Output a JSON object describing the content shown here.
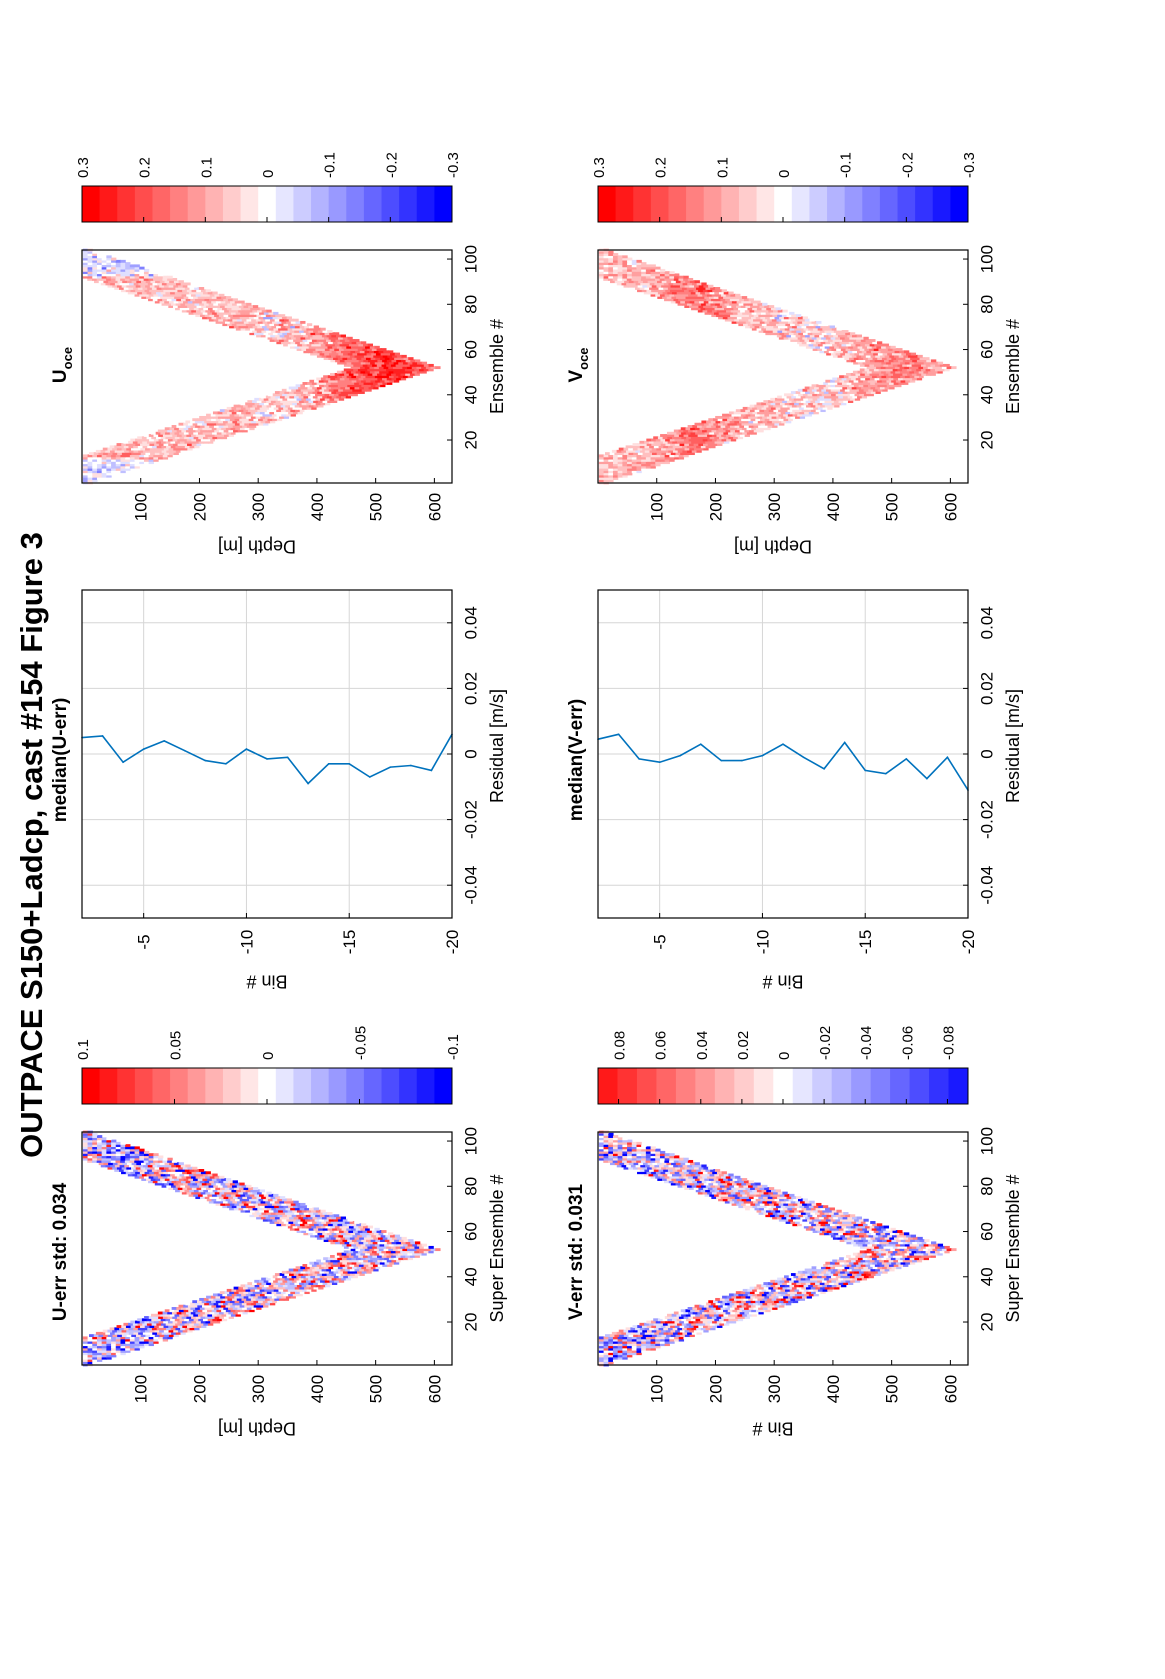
{
  "figure_title": "OUTPACE S150+Ladcp, cast #154  Figure 3",
  "colors": {
    "line": "#0072bd",
    "positive": "#ff0000",
    "negative": "#0000ff",
    "grid": "#d6d6d6"
  },
  "chart_data": [
    {
      "id": "u_err",
      "type": "heatmap",
      "title": "U-err std: 0.034",
      "xlabel": "Super Ensemble #",
      "ylabel": "Depth [m]",
      "xlim": [
        1,
        104
      ],
      "ylim": [
        0,
        630
      ],
      "xticks": [
        "20",
        "40",
        "60",
        "80",
        "100"
      ],
      "yticks": [
        "100",
        "200",
        "300",
        "400",
        "500",
        "600"
      ],
      "pattern": "down-up cast, deepest near ensemble 52, ~600 m",
      "colorbar": {
        "range": [
          -0.1,
          0.1
        ],
        "ticks": [
          "0.1",
          "0.05",
          "0",
          "-0.05",
          "-0.1"
        ]
      }
    },
    {
      "id": "median_u",
      "type": "line",
      "title": "median(U-err)",
      "xlabel": "Residual [m/s]",
      "ylabel": "Bin #",
      "xlim": [
        -0.05,
        0.05
      ],
      "ylim": [
        -20,
        -2
      ],
      "xticks": [
        "-0.04",
        "-0.02",
        "0",
        "0.02",
        "0.04"
      ],
      "yticks": [
        "-5",
        "-10",
        "-15",
        "-20"
      ],
      "series": [
        {
          "bins": [
            -20,
            -19,
            -18,
            -17,
            -16,
            -15,
            -14,
            -13,
            -12,
            -11,
            -10,
            -9,
            -8,
            -7,
            -6,
            -5,
            -4,
            -3,
            -2
          ],
          "values": [
            0.006,
            -0.005,
            -0.0035,
            -0.004,
            -0.007,
            -0.003,
            -0.003,
            -0.009,
            -0.001,
            -0.0015,
            0.0015,
            -0.003,
            -0.002,
            0.001,
            0.004,
            0.0015,
            -0.0025,
            0.0055,
            0.005
          ]
        }
      ]
    },
    {
      "id": "u_oce",
      "type": "heatmap",
      "title": "U",
      "title_sub": "oce",
      "xlabel": "Ensemble #",
      "ylabel": "Depth [m]",
      "xlim": [
        1,
        104
      ],
      "ylim": [
        0,
        630
      ],
      "xticks": [
        "20",
        "40",
        "60",
        "80",
        "100"
      ],
      "yticks": [
        "100",
        "200",
        "300",
        "400",
        "500",
        "600"
      ],
      "colorbar": {
        "range": [
          -0.3,
          0.3
        ],
        "ticks": [
          "0.3",
          "0.2",
          "0.1",
          "0",
          "-0.1",
          "-0.2",
          "-0.3"
        ]
      }
    },
    {
      "id": "v_err",
      "type": "heatmap",
      "title": "V-err std: 0.031",
      "xlabel": "Super Ensemble #",
      "ylabel": "Bin #",
      "xlim": [
        1,
        104
      ],
      "ylim": [
        0,
        630
      ],
      "xticks": [
        "20",
        "40",
        "60",
        "80",
        "100"
      ],
      "yticks": [
        "100",
        "200",
        "300",
        "400",
        "500",
        "600"
      ],
      "colorbar": {
        "range": [
          -0.09,
          0.09
        ],
        "ticks": [
          "0.08",
          "0.06",
          "0.04",
          "0.02",
          "0",
          "-0.02",
          "-0.04",
          "-0.06",
          "-0.08"
        ]
      }
    },
    {
      "id": "median_v",
      "type": "line",
      "title": "median(V-err)",
      "xlabel": "Residual [m/s]",
      "ylabel": "Bin #",
      "xlim": [
        -0.05,
        0.05
      ],
      "ylim": [
        -20,
        -2
      ],
      "xticks": [
        "-0.04",
        "-0.02",
        "0",
        "0.02",
        "0.04"
      ],
      "yticks": [
        "-5",
        "-10",
        "-15",
        "-20"
      ],
      "series": [
        {
          "bins": [
            -20,
            -19,
            -18,
            -17,
            -16,
            -15,
            -14,
            -13,
            -12,
            -11,
            -10,
            -9,
            -8,
            -7,
            -6,
            -5,
            -4,
            -3,
            -2
          ],
          "values": [
            -0.011,
            -0.001,
            -0.0075,
            -0.0015,
            -0.006,
            -0.005,
            0.0035,
            -0.0045,
            -0.001,
            0.003,
            -0.0005,
            -0.002,
            -0.002,
            0.003,
            -0.0005,
            -0.0025,
            -0.0015,
            0.006,
            0.0045
          ]
        }
      ]
    },
    {
      "id": "v_oce",
      "type": "heatmap",
      "title": "V",
      "title_sub": "oce",
      "xlabel": "Ensemble #",
      "ylabel": "Depth [m]",
      "xlim": [
        1,
        104
      ],
      "ylim": [
        0,
        630
      ],
      "xticks": [
        "20",
        "40",
        "60",
        "80",
        "100"
      ],
      "yticks": [
        "100",
        "200",
        "300",
        "400",
        "500",
        "600"
      ],
      "colorbar": {
        "range": [
          -0.3,
          0.3
        ],
        "ticks": [
          "0.3",
          "0.2",
          "0.1",
          "0",
          "-0.1",
          "-0.2",
          "-0.3"
        ]
      }
    }
  ]
}
